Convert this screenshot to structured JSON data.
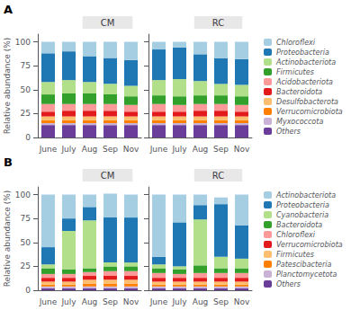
{
  "chart_data": [
    {
      "type": "bar",
      "title": "CM",
      "annotations": [
        "A"
      ],
      "ylabel": "Relative abundance (%)",
      "categories": [
        "June",
        "July",
        "Aug",
        "Sep",
        "Nov"
      ],
      "series": [
        {
          "name": "Others",
          "color": "#6A3D9A",
          "values": [
            13,
            13,
            13,
            13,
            13
          ]
        },
        {
          "name": "Myxococcota",
          "color": "#CAB2D6",
          "values": [
            2,
            2,
            2,
            2,
            2
          ]
        },
        {
          "name": "Verrucomicrobiota",
          "color": "#FF7F00",
          "values": [
            3,
            3,
            3,
            3,
            3
          ]
        },
        {
          "name": "Desulfobacterota",
          "color": "#FDBF6F",
          "values": [
            4,
            4,
            4,
            4,
            4
          ]
        },
        {
          "name": "Bacteroidota",
          "color": "#E31A1C",
          "values": [
            5,
            6,
            6,
            6,
            5
          ]
        },
        {
          "name": "Acidobacteriota",
          "color": "#FB9A99",
          "values": [
            8,
            7,
            7,
            7,
            7
          ]
        },
        {
          "name": "Firmicutes",
          "color": "#33A02C",
          "values": [
            10,
            11,
            11,
            10,
            9
          ]
        },
        {
          "name": "Actinobacteriota",
          "color": "#B2DF8A",
          "values": [
            13,
            14,
            12,
            11,
            11
          ]
        },
        {
          "name": "Proteobacteria",
          "color": "#1F78B4",
          "values": [
            30,
            30,
            27,
            27,
            27
          ]
        },
        {
          "name": "Chloroflexi",
          "color": "#A6CEE3",
          "values": [
            12,
            10,
            15,
            17,
            19
          ]
        }
      ],
      "ylim": [
        0,
        108
      ],
      "yticks": [
        0,
        25,
        50,
        75,
        100
      ],
      "stacked": true,
      "grid": false
    },
    {
      "type": "bar",
      "title": "RC",
      "categories": [
        "June",
        "July",
        "Aug",
        "Sep",
        "Nov"
      ],
      "series": [
        {
          "name": "Others",
          "color": "#6A3D9A",
          "values": [
            13,
            13,
            13,
            13,
            13
          ]
        },
        {
          "name": "Myxococcota",
          "color": "#CAB2D6",
          "values": [
            2,
            2,
            2,
            2,
            2
          ]
        },
        {
          "name": "Verrucomicrobiota",
          "color": "#FF7F00",
          "values": [
            3,
            3,
            3,
            3,
            3
          ]
        },
        {
          "name": "Desulfobacterota",
          "color": "#FDBF6F",
          "values": [
            4,
            4,
            4,
            4,
            4
          ]
        },
        {
          "name": "Bacteroidota",
          "color": "#E31A1C",
          "values": [
            5,
            5,
            6,
            6,
            5
          ]
        },
        {
          "name": "Acidobacteriota",
          "color": "#FB9A99",
          "values": [
            8,
            7,
            7,
            7,
            7
          ]
        },
        {
          "name": "Firmicutes",
          "color": "#33A02C",
          "values": [
            9,
            9,
            9,
            9,
            9
          ]
        },
        {
          "name": "Actinobacteriota",
          "color": "#B2DF8A",
          "values": [
            16,
            18,
            15,
            12,
            12
          ]
        },
        {
          "name": "Proteobacteria",
          "color": "#1F78B4",
          "values": [
            32,
            33,
            28,
            27,
            27
          ]
        },
        {
          "name": "Chloroflexi",
          "color": "#A6CEE3",
          "values": [
            8,
            6,
            13,
            17,
            18
          ]
        }
      ],
      "ylim": [
        0,
        108
      ],
      "yticks": [
        0,
        25,
        50,
        75,
        100
      ],
      "stacked": true,
      "grid": false,
      "tick_labels": "x",
      "legend": "right"
    },
    {
      "type": "bar",
      "title": "CM",
      "annotations": [
        "B"
      ],
      "ylabel": "Relative abundance (%)",
      "categories": [
        "June",
        "July",
        "Aug",
        "Sep",
        "Nov"
      ],
      "series": [
        {
          "name": "Others",
          "color": "#6A3D9A",
          "values": [
            2,
            2,
            2,
            2,
            2
          ]
        },
        {
          "name": "Planctomycetota",
          "color": "#CAB2D6",
          "values": [
            2,
            2,
            2,
            2,
            2
          ]
        },
        {
          "name": "Patescibacteria",
          "color": "#FF7F00",
          "values": [
            2,
            2,
            3,
            3,
            3
          ]
        },
        {
          "name": "Firmicutes",
          "color": "#FDBF6F",
          "values": [
            3,
            3,
            4,
            4,
            4
          ]
        },
        {
          "name": "Verrucomicrobiota",
          "color": "#E31A1C",
          "values": [
            4,
            4,
            4,
            4,
            4
          ]
        },
        {
          "name": "Chloroflexi",
          "color": "#FB9A99",
          "values": [
            4,
            4,
            4,
            5,
            5
          ]
        },
        {
          "name": "Bacteroidota",
          "color": "#33A02C",
          "values": [
            6,
            5,
            4,
            5,
            5
          ]
        },
        {
          "name": "Cyanobacteria",
          "color": "#B2DF8A",
          "values": [
            4,
            40,
            50,
            4,
            4
          ]
        },
        {
          "name": "Proteobacteria",
          "color": "#1F78B4",
          "values": [
            18,
            13,
            14,
            47,
            47
          ]
        },
        {
          "name": "Actinobacteriota",
          "color": "#A6CEE3",
          "values": [
            55,
            25,
            13,
            25,
            24
          ]
        }
      ],
      "ylim": [
        0,
        108
      ],
      "yticks": [
        0,
        25,
        50,
        75,
        100
      ],
      "stacked": true,
      "grid": false
    },
    {
      "type": "bar",
      "title": "RC",
      "categories": [
        "June",
        "July",
        "Aug",
        "Sep",
        "Nov"
      ],
      "series": [
        {
          "name": "Others",
          "color": "#6A3D9A",
          "values": [
            2,
            2,
            2,
            2,
            2
          ]
        },
        {
          "name": "Planctomycetota",
          "color": "#CAB2D6",
          "values": [
            2,
            2,
            2,
            2,
            2
          ]
        },
        {
          "name": "Patescibacteria",
          "color": "#FF7F00",
          "values": [
            2,
            2,
            2,
            2,
            2
          ]
        },
        {
          "name": "Firmicutes",
          "color": "#FDBF6F",
          "values": [
            3,
            3,
            3,
            3,
            3
          ]
        },
        {
          "name": "Verrucomicrobiota",
          "color": "#E31A1C",
          "values": [
            4,
            4,
            4,
            4,
            4
          ]
        },
        {
          "name": "Chloroflexi",
          "color": "#FB9A99",
          "values": [
            5,
            4,
            5,
            5,
            5
          ]
        },
        {
          "name": "Bacteroidota",
          "color": "#33A02C",
          "values": [
            5,
            5,
            8,
            5,
            5
          ]
        },
        {
          "name": "Cyanobacteria",
          "color": "#B2DF8A",
          "values": [
            4,
            3,
            48,
            12,
            10
          ]
        },
        {
          "name": "Proteobacteria",
          "color": "#1F78B4",
          "values": [
            8,
            46,
            15,
            55,
            35
          ]
        },
        {
          "name": "Actinobacteriota",
          "color": "#A6CEE3",
          "values": [
            65,
            29,
            11,
            7,
            32
          ]
        }
      ],
      "ylim": [
        0,
        108
      ],
      "yticks": [
        0,
        25,
        50,
        75,
        100
      ],
      "stacked": true,
      "grid": false,
      "tick_labels": "x",
      "legend": "right"
    }
  ]
}
